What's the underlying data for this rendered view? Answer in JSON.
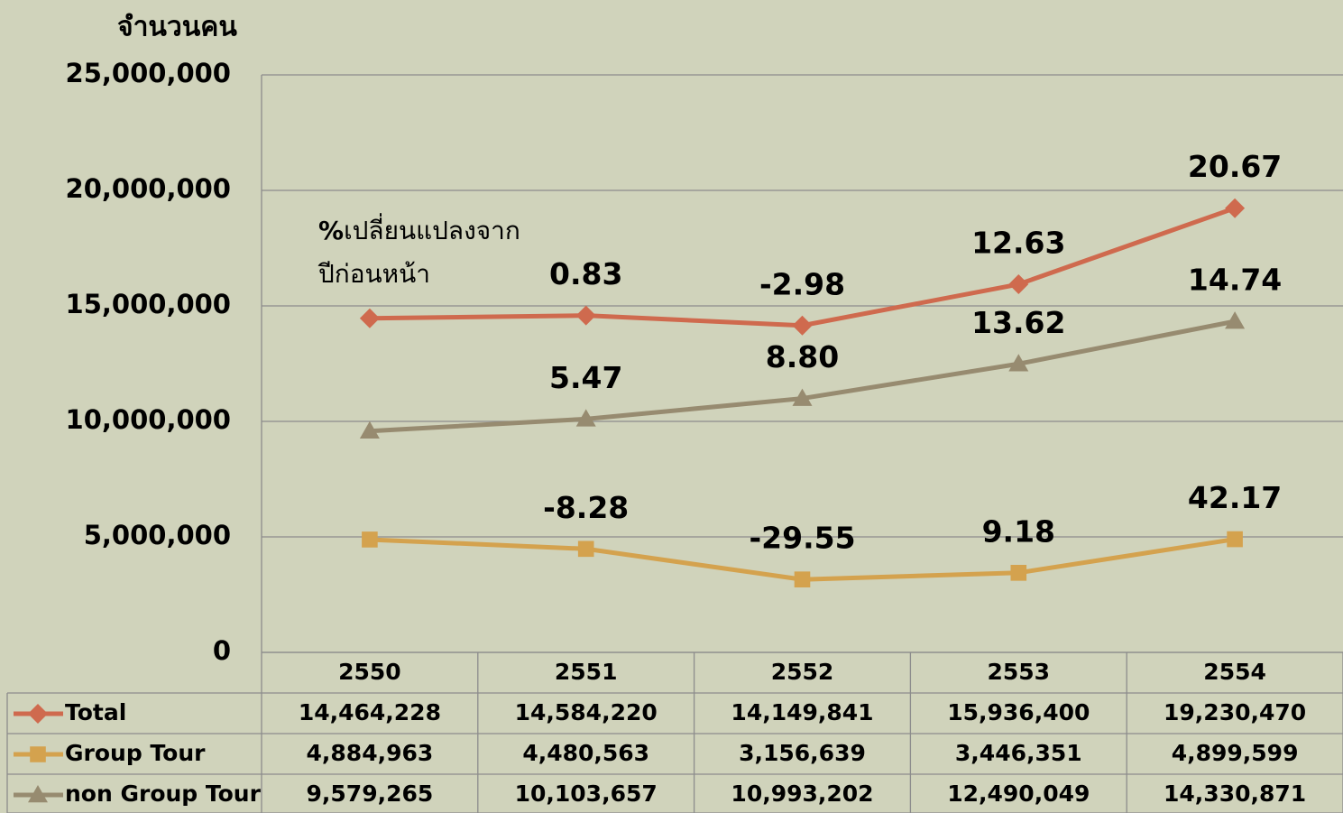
{
  "chart_data": {
    "type": "line",
    "y_label": "จำนวนคน",
    "annotation": {
      "prefix": "%",
      "lines": [
        "เปลี่ยนแปลงจาก",
        "ปีก่อนหน้า"
      ]
    },
    "categories": [
      "2550",
      "2551",
      "2552",
      "2553",
      "2554"
    ],
    "ylim": [
      0,
      25000000
    ],
    "yticks": [
      0,
      {
        "value": 5000000,
        "label": "5,000,000"
      },
      {
        "value": 10000000,
        "label": "10,000,000"
      },
      {
        "value": 15000000,
        "label": "15,000,000"
      },
      {
        "value": 20000000,
        "label": "20,000,000"
      },
      {
        "value": 25000000,
        "label": "25,000,000"
      }
    ],
    "grid": true,
    "series": [
      {
        "name": "Total",
        "color": "#cf6a4e",
        "marker": "diamond",
        "values": [
          14464228,
          14584220,
          14149841,
          15936400,
          19230470
        ],
        "value_labels": [
          "14,464,228",
          "14,584,220",
          "14,149,841",
          "15,936,400",
          "19,230,470"
        ],
        "change_labels": [
          null,
          "0.83",
          "-2.98",
          "12.63",
          "20.67"
        ]
      },
      {
        "name": "Group Tour",
        "color": "#d4a24e",
        "marker": "square",
        "values": [
          4884963,
          4480563,
          3156639,
          3446351,
          4899599
        ],
        "value_labels": [
          "4,884,963",
          "4,480,563",
          "3,156,639",
          "3,446,351",
          "4,899,599"
        ],
        "change_labels": [
          null,
          "-8.28",
          "-29.55",
          "9.18",
          "42.17"
        ]
      },
      {
        "name": "non Group Tour",
        "color": "#978b70",
        "marker": "triangle",
        "values": [
          9579265,
          10103657,
          10993202,
          12490049,
          14330871
        ],
        "value_labels": [
          "9,579,265",
          "10,103,657",
          "10,993,202",
          "12,490,049",
          "14,330,871"
        ],
        "change_labels": [
          null,
          "5.47",
          "8.80",
          "13.62",
          "14.74"
        ]
      }
    ]
  }
}
